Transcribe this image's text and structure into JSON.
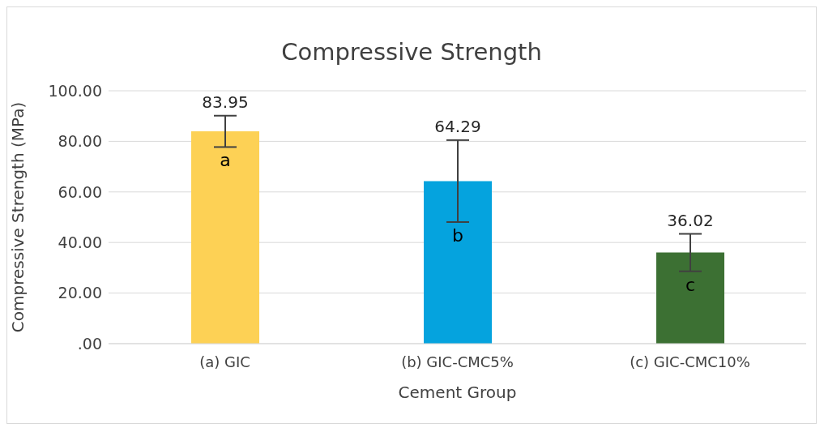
{
  "chart_data": {
    "type": "bar",
    "title": "Compressive Strength",
    "xlabel": "Cement Group",
    "ylabel": "Compressive Strength (MPa)",
    "categories": [
      "(a) GIC",
      "(b) GIC-CMC5%",
      "(c) GIC-CMC10%"
    ],
    "values": [
      83.95,
      64.29,
      36.02
    ],
    "colors": [
      "#fdd155",
      "#05a3de",
      "#3c7033"
    ],
    "errors": [
      6.2,
      16.2,
      7.4
    ],
    "data_labels": true,
    "ylim": [
      0,
      100
    ],
    "yticks": [
      {
        "value": 0,
        "label": ".00"
      },
      {
        "value": 20,
        "label": "20.00"
      },
      {
        "value": 40,
        "label": "40.00"
      },
      {
        "value": 60,
        "label": "60.00"
      },
      {
        "value": 80,
        "label": "80.00"
      },
      {
        "value": 100,
        "label": "100.00"
      }
    ],
    "grid": "y",
    "annotations": [
      "a",
      "b",
      "c"
    ]
  }
}
